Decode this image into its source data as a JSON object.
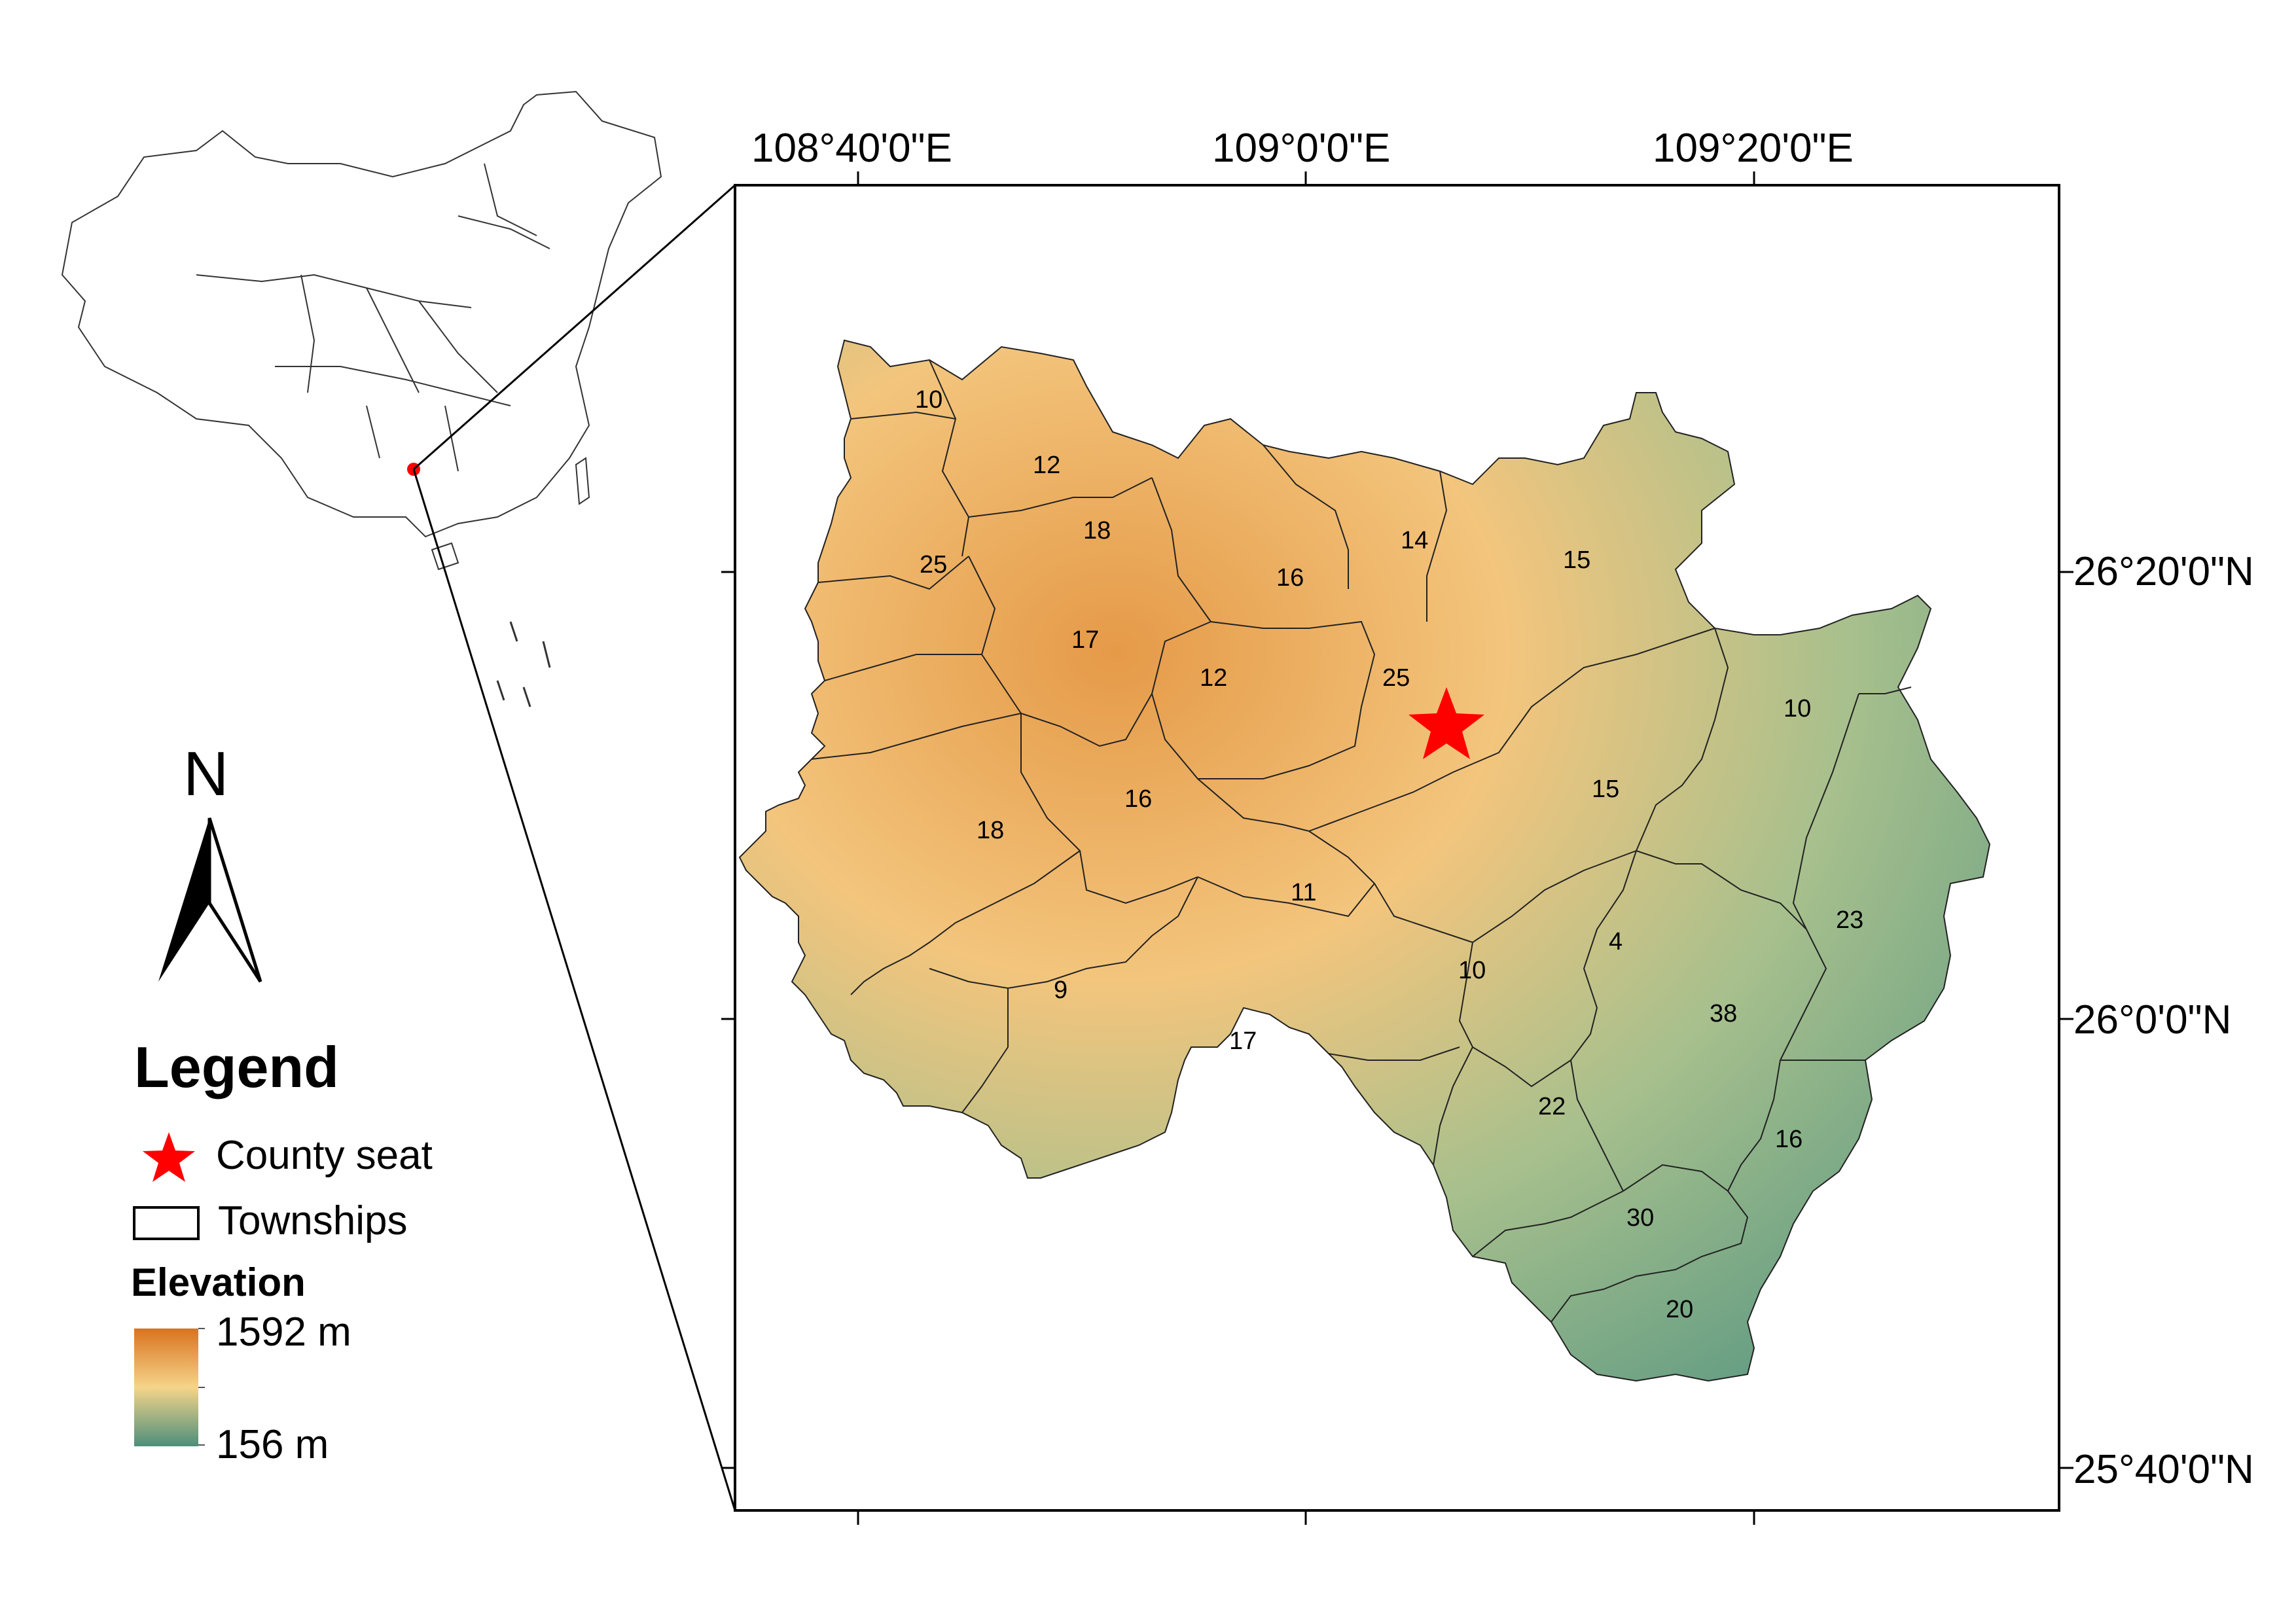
{
  "axes": {
    "longitude_labels": [
      "108°40'0\"E",
      "109°0'0\"E",
      "109°20'0\"E"
    ],
    "latitude_labels": [
      "26°20'0\"N",
      "26°0'0\"N",
      "25°40'0\"N"
    ]
  },
  "north_arrow": {
    "label": "N",
    "icon": "north-arrow-icon"
  },
  "legend": {
    "title": "Legend",
    "county_seat_label": "County seat",
    "townships_label": "Townships",
    "elevation_title": "Elevation",
    "elevation_max": "1592 m",
    "elevation_min": "156 m",
    "colors": {
      "high": "#d9731f",
      "mid": "#f5d48a",
      "low": "#4d8f7a",
      "county_seat": "#ff0000",
      "locator_dot": "#ff0000"
    }
  },
  "township_labels": [
    "10",
    "12",
    "18",
    "25",
    "17",
    "16",
    "14",
    "15",
    "12",
    "25",
    "16",
    "18",
    "11",
    "9",
    "17",
    "10",
    "15",
    "10",
    "23",
    "4",
    "38",
    "22",
    "16",
    "30",
    "20"
  ]
}
